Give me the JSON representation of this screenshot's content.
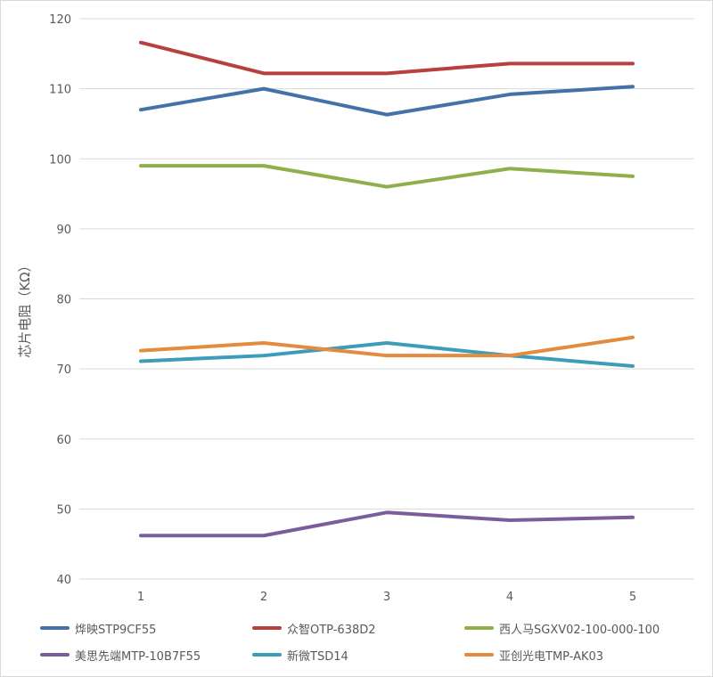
{
  "chart_data": {
    "type": "line",
    "title": "",
    "xlabel": "",
    "ylabel": "芯片电阻（KΩ）",
    "categories": [
      "1",
      "2",
      "3",
      "4",
      "5"
    ],
    "ylim": [
      40,
      120
    ],
    "yticks": [
      "40",
      "50",
      "60",
      "70",
      "80",
      "90",
      "100",
      "110",
      "120"
    ],
    "grid": true,
    "legend_position": "bottom",
    "series": [
      {
        "name": "烨映STP9CF55",
        "color": "#4472A8",
        "values": [
          107.0,
          110.0,
          106.3,
          109.2,
          110.3
        ]
      },
      {
        "name": "众智OTP-638D2",
        "color": "#B8403E",
        "values": [
          116.6,
          112.2,
          112.2,
          113.6,
          113.6
        ]
      },
      {
        "name": "西人马SGXV02-100-000-100",
        "color": "#8FAF4A",
        "values": [
          99.0,
          99.0,
          96.0,
          98.6,
          97.5
        ]
      },
      {
        "name": "美思先端MTP-10B7F55",
        "color": "#7B5D9B",
        "values": [
          46.2,
          46.2,
          49.5,
          48.4,
          48.8
        ]
      },
      {
        "name": "新微TSD14",
        "color": "#3D9DB8",
        "values": [
          71.1,
          71.9,
          73.7,
          71.9,
          70.4
        ]
      },
      {
        "name": "亚创光电TMP-AK03",
        "color": "#E38B3E",
        "values": [
          72.6,
          73.7,
          71.9,
          71.9,
          74.5
        ]
      }
    ]
  }
}
